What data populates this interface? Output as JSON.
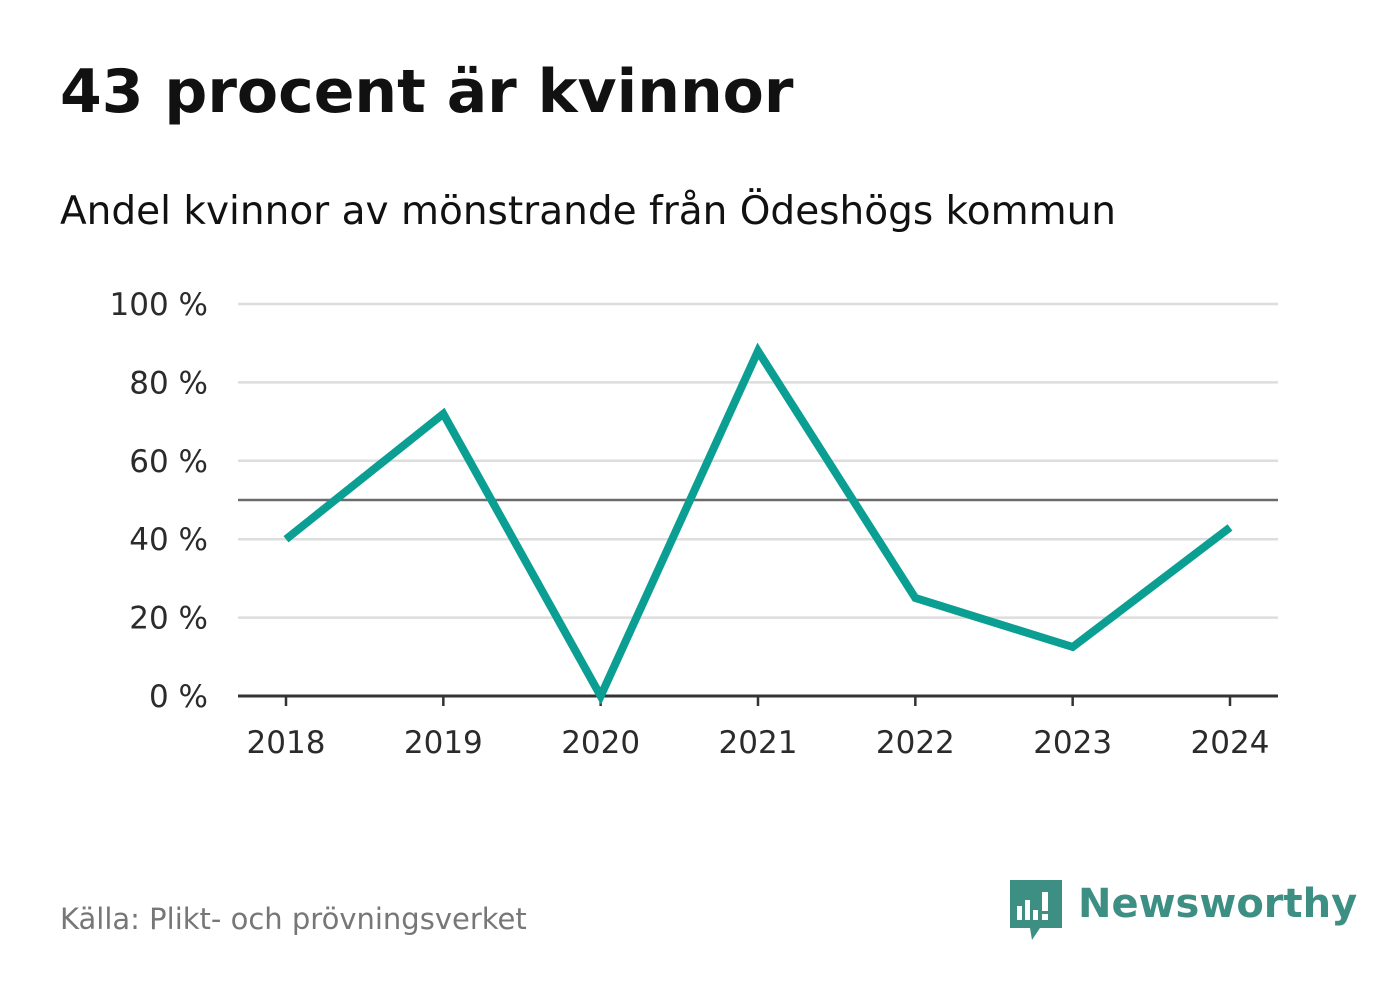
{
  "title": "43 procent är kvinnor",
  "subtitle": "Andel kvinnor av mönstrande från Ödeshögs kommun",
  "source": "Källa: Plikt- och prövningsverket",
  "logo_text": "Newsworthy",
  "colors": {
    "line": "#0a9f92",
    "grid": "#dddddd",
    "reference": "#6b6b6b",
    "axis": "#333333",
    "logo": "#3d8f83"
  },
  "chart_data": {
    "type": "line",
    "title": "43 procent är kvinnor",
    "subtitle": "Andel kvinnor av mönstrande från Ödeshögs kommun",
    "xlabel": "",
    "ylabel": "",
    "categories": [
      "2018",
      "2019",
      "2020",
      "2021",
      "2022",
      "2023",
      "2024"
    ],
    "series": [
      {
        "name": "Andel kvinnor",
        "values": [
          40,
          72,
          0,
          88,
          25,
          12.5,
          43
        ]
      }
    ],
    "ylim": [
      0,
      100
    ],
    "yticks": [
      0,
      20,
      40,
      60,
      80,
      100
    ],
    "ytick_labels": [
      "0 %",
      "20 %",
      "40 %",
      "60 %",
      "80 %",
      "100 %"
    ],
    "reference_line": 50,
    "grid": true,
    "legend": "none"
  }
}
